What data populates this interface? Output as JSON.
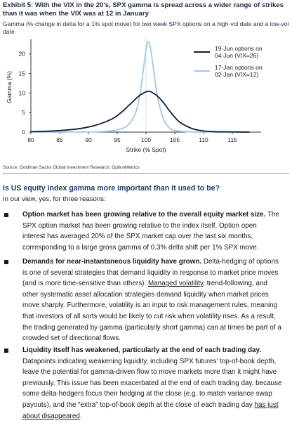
{
  "exhibit": {
    "title": "Exhibit 5: With the VIX in the 20’s, SPX gamma is spread across a wider range of strikes than it was when the VIX was at 12 in January",
    "subtitle": "Gamma (% change in delta for a 1% spot move) for two week SPX options on a high-vol date and a low-vol date",
    "source": "Source: Goldman Sachs Global Investment Research, OptionMetrics"
  },
  "chart_data": {
    "type": "line",
    "xlabel": "Strike (% Spot)",
    "ylabel": "Gamma (%)",
    "xlim": [
      80,
      120
    ],
    "ylim": [
      0,
      23
    ],
    "xticks": [
      80,
      85,
      90,
      95,
      100,
      105,
      110,
      115
    ],
    "yticks": [
      0,
      5,
      10,
      15,
      20
    ],
    "grid": false,
    "legend_position": "top-right",
    "series": [
      {
        "name": "19-Jun options on 04-Jun (VIX=26)",
        "color": "#0f1b3d",
        "x": [
          80,
          84,
          88,
          90,
          92,
          94,
          95,
          96,
          97,
          98,
          99,
          100,
          100.5,
          101,
          102,
          103,
          104,
          105,
          106,
          108,
          110,
          112,
          115,
          118
        ],
        "y": [
          0.1,
          0.3,
          0.8,
          1.3,
          2.1,
          3.3,
          4.2,
          5.4,
          6.8,
          8.2,
          9.5,
          10.3,
          10.4,
          10.2,
          9.2,
          7.6,
          5.6,
          3.8,
          2.4,
          0.9,
          0.3,
          0.1,
          0.05,
          0.0
        ]
      },
      {
        "name": "17-Jan options on 02-Jan (VIX=12)",
        "color": "#9ec8e8",
        "x": [
          80,
          90,
          94,
          96,
          97,
          98,
          98.5,
          99,
          99.5,
          100,
          100.3,
          100.6,
          101,
          101.5,
          102,
          103,
          104,
          105,
          107,
          110,
          118
        ],
        "y": [
          0.0,
          0.05,
          0.3,
          1.0,
          2.0,
          4.2,
          6.5,
          10.0,
          15.5,
          21.0,
          22.9,
          22.5,
          19.5,
          14.0,
          9.0,
          3.5,
          1.2,
          0.4,
          0.1,
          0.02,
          0.0
        ]
      }
    ]
  },
  "article": {
    "heading": "Is US equity index gamma more important than it used to be?",
    "intro": "In our view, yes, for three reasons:",
    "b1": {
      "bold": "Option market has been growing relative to the overall equity market size.",
      "lines": [
        "SPX option market has been growing relative to the index itself. Option open",
        "interest has averaged 20% of the SPX market cap over the last six months,",
        "corresponding to a large gross gamma of 0.3% delta shift per 1% SPX move."
      ]
    },
    "b2": {
      "bold": "Demands for near-instantaneous liquidity have grown.",
      "rest1": " Delta-hedging of options",
      "lines_a": [
        "is one of several strategies that demand liquidity in response to market price moves",
        "(and is more time-sensitive than others)."
      ],
      "link": "Managed volatility",
      "after_link": ", trend-following, and",
      "lines_b": [
        "other systematic asset allocation strategies demand liquidity when market prices",
        "move sharply. Furthermore, volatility is an input to risk management rules, meaning",
        "that investors of all sorts would be likely to cut risk when volatility rises. As a result,",
        "the trading generated by gamma (particularly short gamma) can at times be part of a",
        "crowded set of directional flows."
      ]
    },
    "b3": {
      "bold": "Liquidity itself has weakened, particularly at the end of each trading day.",
      "lines": [
        "Datapoints indicating weakening liquidity, including SPX futures’ top-of-book depth,",
        "leave the potential for gamma-driven flow to move markets more than it might have",
        "previously. This issue has been exacerbated at the end of each trading day, because",
        "some delta-hedgers focus their hedging at the close (e.g. to match variance swap"
      ],
      "last_a": "payouts), and the “extra” top-of-book depth at the close of each trading day ",
      "last_link": "has just",
      "final_link": "about disappeared",
      "final_tail": "."
    }
  }
}
